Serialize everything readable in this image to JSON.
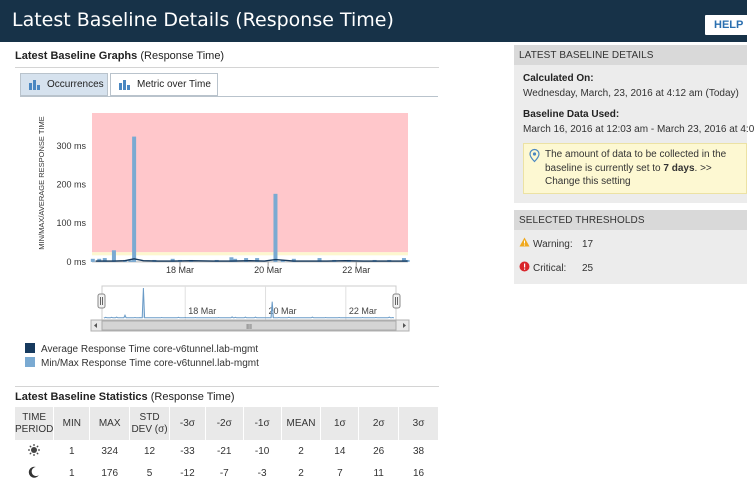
{
  "header": {
    "title": "Latest Baseline Details (Response Time)",
    "help_label": "HELP"
  },
  "graphs": {
    "title_bold": "Latest Baseline Graphs",
    "title_rest": "(Response Time)",
    "tabs": [
      {
        "label": "Occurrences",
        "active": true
      },
      {
        "label": "Metric over Time",
        "active": false
      }
    ]
  },
  "chart_data": {
    "type": "bar",
    "ylabel": "MIN/MAX/AVERAGE RESPONSE TIME",
    "yticks": [
      "300 ms",
      "200 ms",
      "100 ms",
      "0 ms"
    ],
    "ytick_values": [
      300,
      200,
      100,
      0
    ],
    "xticks": [
      "18 Mar",
      "20 Mar",
      "22 Mar"
    ],
    "xtick_dates": [
      "2016-03-18",
      "2016-03-20",
      "2016-03-22"
    ],
    "xlim": [
      "2016-03-16T00:03",
      "2016-03-23T04:12"
    ],
    "ylim": [
      -8,
      385
    ],
    "bands": [
      {
        "name": "critical",
        "from": 25,
        "to": 385,
        "color": "#ffc7cb"
      },
      {
        "name": "warning",
        "from": 17,
        "to": 25,
        "color": "#fdf7cf"
      }
    ],
    "series": [
      {
        "name": "Average Response Time core-v6tunnel.lab-mgmt",
        "color": "#173a5e",
        "x": [
          "2016-03-16T02:00",
          "2016-03-16T12:00",
          "2016-03-16T18:00",
          "2016-03-16T23:00",
          "2016-03-17T04:00",
          "2016-03-17T12:00",
          "2016-03-17T20:00",
          "2016-03-18T06:00",
          "2016-03-18T18:00",
          "2016-03-19T04:00",
          "2016-03-19T14:00",
          "2016-03-19T22:00",
          "2016-03-20T04:00",
          "2016-03-20T14:00",
          "2016-03-20T23:00",
          "2016-03-21T08:00",
          "2016-03-21T18:00",
          "2016-03-22T04:00",
          "2016-03-22T14:00",
          "2016-03-23T00:00",
          "2016-03-23T04:00"
        ],
        "y": [
          2,
          2,
          3,
          8,
          3,
          2,
          2,
          3,
          2,
          2,
          3,
          2,
          6,
          2,
          2,
          2,
          3,
          2,
          2,
          2,
          2
        ]
      },
      {
        "name": "Min/Max Response Time core-v6tunnel.lab-mgmt",
        "color": "#7aaad2",
        "x": [
          "2016-03-16T00:30",
          "2016-03-16T04:00",
          "2016-03-16T07:00",
          "2016-03-16T12:00",
          "2016-03-16T18:00",
          "2016-03-16T21:00",
          "2016-03-16T23:00",
          "2016-03-17T10:00",
          "2016-03-17T20:00",
          "2016-03-18T00:00",
          "2016-03-18T06:00",
          "2016-03-18T20:00",
          "2016-03-19T04:00",
          "2016-03-19T06:00",
          "2016-03-19T12:00",
          "2016-03-19T18:00",
          "2016-03-20T04:00",
          "2016-03-20T08:00",
          "2016-03-20T14:00",
          "2016-03-21T04:00",
          "2016-03-21T12:00",
          "2016-03-21T20:00",
          "2016-03-22T10:00",
          "2016-03-22T18:00",
          "2016-03-23T02:00",
          "2016-03-23T04:00"
        ],
        "low": [
          0,
          0,
          0,
          0,
          0,
          0,
          0,
          0,
          0,
          0,
          0,
          0,
          0,
          0,
          0,
          0,
          0,
          0,
          0,
          0,
          0,
          0,
          0,
          0,
          0,
          0
        ],
        "high": [
          8,
          8,
          10,
          30,
          5,
          4,
          324,
          5,
          8,
          5,
          5,
          5,
          12,
          8,
          10,
          10,
          176,
          5,
          8,
          10,
          5,
          5,
          5,
          5,
          10,
          5
        ]
      }
    ]
  },
  "navigator": {
    "ticks": [
      "18 Mar",
      "20 Mar",
      "22 Mar"
    ],
    "grip": "III"
  },
  "legend": [
    {
      "label": "Average Response Time core-v6tunnel.lab-mgmt",
      "color": "#173a5e"
    },
    {
      "label": "Min/Max Response Time core-v6tunnel.lab-mgmt",
      "color": "#7aaad2"
    }
  ],
  "stats": {
    "title_bold": "Latest Baseline Statistics",
    "title_rest": "(Response Time)",
    "headers": [
      "TIME PERIOD",
      "MIN",
      "MAX",
      "STD DEV (σ)",
      "-3σ",
      "-2σ",
      "-1σ",
      "MEAN",
      "1σ",
      "2σ",
      "3σ"
    ],
    "rows": [
      {
        "period_icon": "sun-icon",
        "values": [
          "1",
          "324",
          "12",
          "-33",
          "-21",
          "-10",
          "2",
          "14",
          "26",
          "38"
        ]
      },
      {
        "period_icon": "moon-icon",
        "values": [
          "1",
          "176",
          "5",
          "-12",
          "-7",
          "-3",
          "2",
          "7",
          "11",
          "16"
        ]
      }
    ]
  },
  "details": {
    "header": "LATEST BASELINE DETAILS",
    "calculated_label": "Calculated On:",
    "calculated_value": "Wednesday, March, 23, 2016 at 4:12 am (Today)",
    "data_label": "Baseline Data Used:",
    "data_value": "March 16, 2016 at 12:03 am - March 23, 2016 at 4:0",
    "note_pre": "The amount of data to be collected in the baseline is currently set to ",
    "note_bold": "7 days",
    "note_mid": ". ",
    "note_link": ">> Change this setting"
  },
  "thresholds": {
    "header": "SELECTED THRESHOLDS",
    "warning_label": "Warning:",
    "warning_value": "17",
    "critical_label": "Critical:",
    "critical_value": "25",
    "warning_color": "#f0a91e",
    "critical_color": "#d9262c"
  }
}
